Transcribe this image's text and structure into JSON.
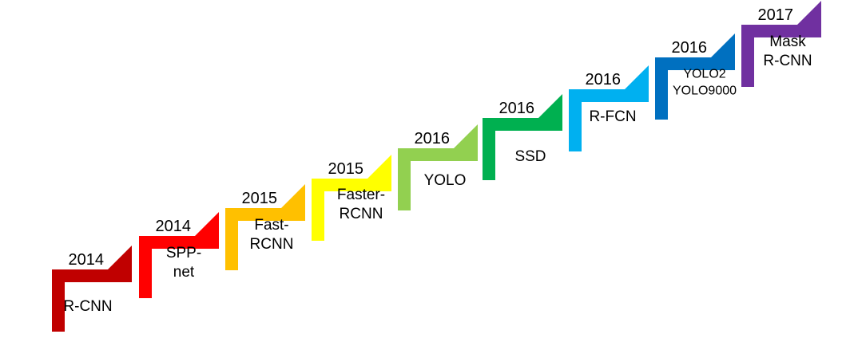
{
  "steps": [
    {
      "year": "2014",
      "name_lines": [
        "R-CNN"
      ],
      "color": "#C00000"
    },
    {
      "year": "2014",
      "name_lines": [
        "SPP-",
        "net"
      ],
      "color": "#FF0000"
    },
    {
      "year": "2015",
      "name_lines": [
        "Fast-",
        "RCNN"
      ],
      "color": "#FFC000"
    },
    {
      "year": "2015",
      "name_lines": [
        "Faster-",
        "RCNN"
      ],
      "color": "#FFFF00"
    },
    {
      "year": "2016",
      "name_lines": [
        "YOLO"
      ],
      "color": "#92D050"
    },
    {
      "year": "2016",
      "name_lines": [
        "SSD"
      ],
      "color": "#00B050"
    },
    {
      "year": "2016",
      "name_lines": [
        "R-FCN"
      ],
      "color": "#00B0F0"
    },
    {
      "year": "2016",
      "name_lines": [
        "YOLO2",
        "YOLO9000"
      ],
      "color": "#0070C0"
    },
    {
      "year": "2017",
      "name_lines": [
        "Mask",
        "R-CNN"
      ],
      "color": "#7030A0"
    }
  ]
}
